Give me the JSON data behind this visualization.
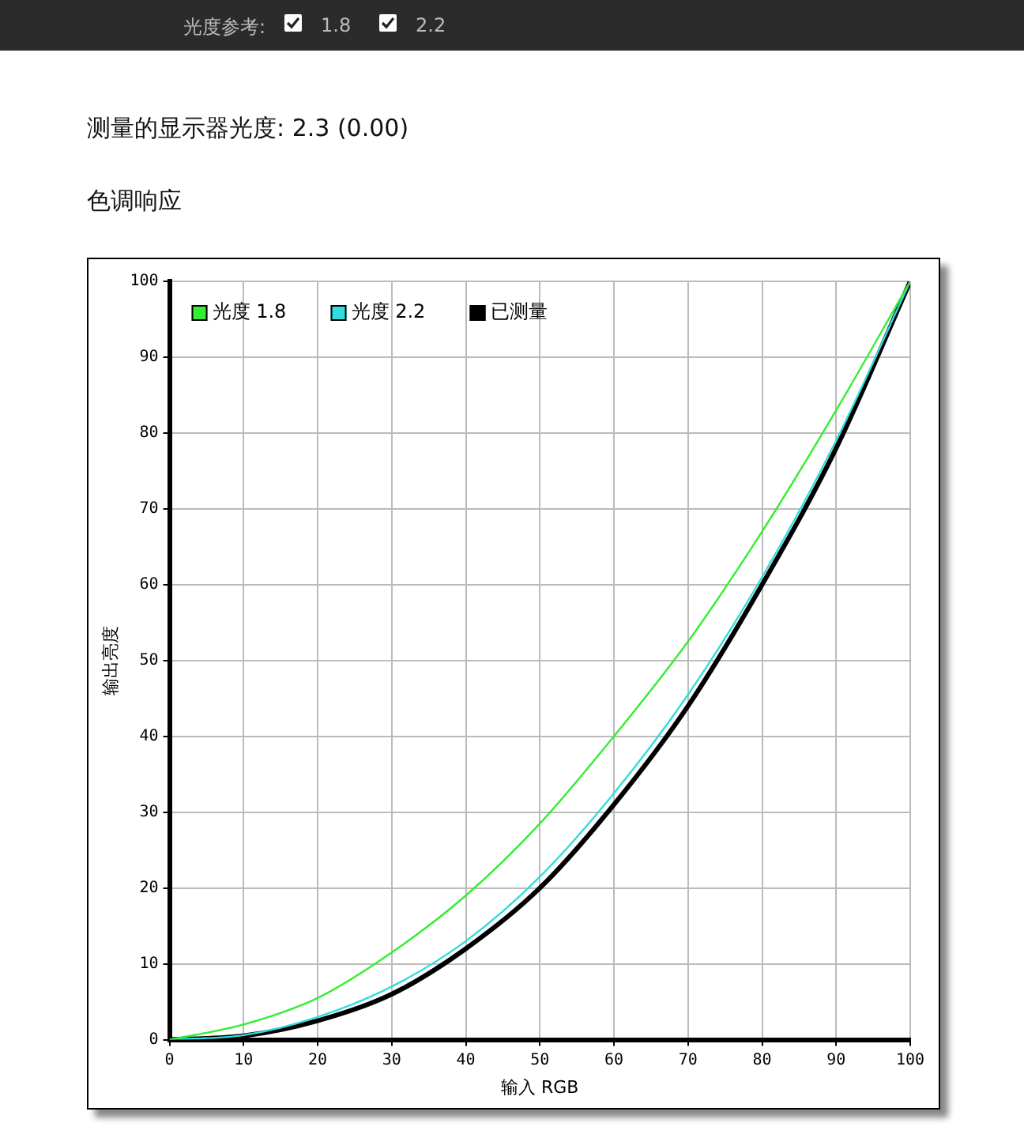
{
  "chart_data": {
    "type": "line",
    "title": "色调响应",
    "subtitle": "测量的显示器光度: 2.3 (0.00)",
    "xlabel": "输入 RGB",
    "ylabel": "输出亮度",
    "annotations": [
      "光度参考:",
      "1.8",
      "2.2"
    ],
    "x": [
      0,
      10,
      20,
      30,
      40,
      50,
      60,
      70,
      80,
      90,
      100
    ],
    "series": [
      {
        "name": "光度 1.8",
        "color": "#33ee33",
        "values": [
          0,
          2,
          5.5,
          11.5,
          19,
          28.5,
          40,
          52.5,
          67,
          83,
          100
        ]
      },
      {
        "name": "光度 2.2",
        "color": "#33dddd",
        "values": [
          0,
          0.6,
          3,
          7,
          13,
          21.5,
          32.5,
          45.5,
          61,
          79,
          100
        ]
      },
      {
        "name": "已测量",
        "color": "#000000",
        "values": [
          0,
          0.5,
          2.5,
          6,
          12,
          20,
          31,
          44,
          60,
          78,
          100
        ]
      }
    ],
    "xlim": [
      0,
      100
    ],
    "ylim": [
      0,
      100
    ],
    "xticks": [
      0,
      10,
      20,
      30,
      40,
      50,
      60,
      70,
      80,
      90,
      100
    ],
    "yticks": [
      0,
      10,
      20,
      30,
      40,
      50,
      60,
      70,
      80,
      90,
      100
    ],
    "grid": true,
    "legend": "top left",
    "marker": "none",
    "line_style": "solid"
  }
}
